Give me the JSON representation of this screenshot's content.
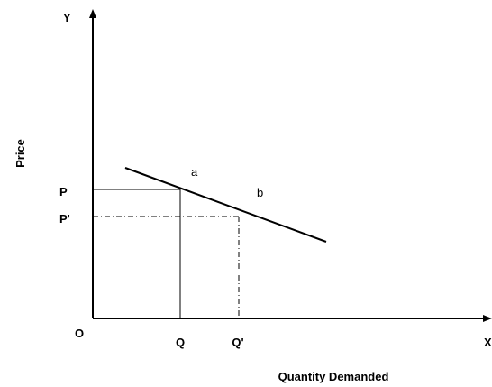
{
  "diagram": {
    "axes": {
      "y_axis_letter": "Y",
      "x_axis_letter": "X",
      "origin_label": "O",
      "y_axis_title": "Price",
      "x_axis_title": "Quantity Demanded"
    },
    "tick_labels": {
      "price_p": "P",
      "price_p_prime": "P'",
      "quantity_q": "Q",
      "quantity_q_prime": "Q'"
    },
    "points": {
      "a": "a",
      "b": "b"
    },
    "colors": {
      "line": "#000000",
      "background": "#ffffff"
    }
  }
}
